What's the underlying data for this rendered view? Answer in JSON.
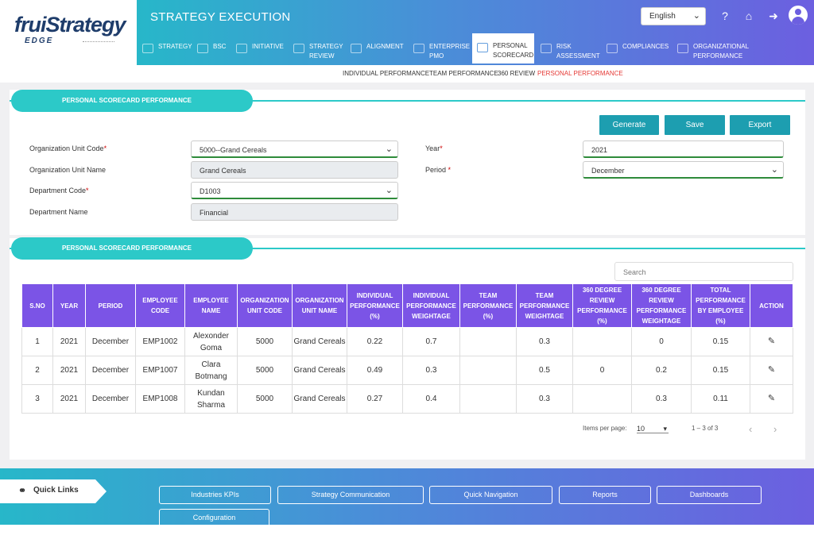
{
  "brand": {
    "name": "fruiStrategy",
    "sub": "EDGE"
  },
  "header": {
    "title": "STRATEGY EXECUTION",
    "language": "English"
  },
  "header_icons": [
    "help-icon",
    "home-icon",
    "logout-icon",
    "user-avatar-icon"
  ],
  "tabs": [
    {
      "label": "STRATEGY",
      "icon": "strategy-icon"
    },
    {
      "label": "BSC",
      "icon": "bsc-icon"
    },
    {
      "label": "INITIATIVE",
      "icon": "initiative-icon"
    },
    {
      "label": "STRATEGY\nREVIEW",
      "icon": "review-icon"
    },
    {
      "label": "ALIGNMENT",
      "icon": "alignment-icon"
    },
    {
      "label": "ENTERPRISE\nPMO",
      "icon": "pmo-icon"
    },
    {
      "label": "PERSONAL\nSCORECARD",
      "icon": "scorecard-icon",
      "active": true
    },
    {
      "label": "RISK\nASSESSMENT",
      "icon": "risk-icon"
    },
    {
      "label": "COMPLIANCES",
      "icon": "compliance-icon"
    },
    {
      "label": "ORGANIZATIONAL\nPERFORMANCE",
      "icon": "org-performance-icon"
    }
  ],
  "subnav": {
    "items": [
      "INDIVIDUAL PERFORMANCE",
      "TEAM PERFORMANCE",
      "360 REVIEW",
      "PERSONAL PERFORMANCE"
    ],
    "active_color": "#e53935"
  },
  "section1": {
    "title": "PERSONAL SCORECARD PERFORMANCE"
  },
  "actions": {
    "generate": "Generate",
    "save": "Save",
    "export": "Export"
  },
  "form": {
    "org_unit_code": {
      "label": "Organization Unit Code",
      "value": "5000--Grand Cereals"
    },
    "org_unit_name": {
      "label": "Organization Unit Name",
      "value": "Grand Cereals"
    },
    "dept_code": {
      "label": "Department Code",
      "value": "D1003"
    },
    "dept_name": {
      "label": "Department Name",
      "value": "Financial"
    },
    "year": {
      "label": "Year",
      "value": "2021"
    },
    "period": {
      "label": "Period",
      "value": "December"
    }
  },
  "section2": {
    "title": "PERSONAL SCORECARD PERFORMANCE"
  },
  "search": {
    "placeholder": "Search"
  },
  "table": {
    "headers": [
      "S.NO",
      "YEAR",
      "PERIOD",
      "EMPLOYEE CODE",
      "EMPLOYEE NAME",
      "ORGANIZATION UNIT CODE",
      "ORGANIZATION UNIT NAME",
      "INDIVIDUAL PERFORMANCE (%)",
      "INDIVIDUAL PERFORMANCE WEIGHTAGE",
      "TEAM PERFORMANCE (%)",
      "TEAM PERFORMANCE WEIGHTAGE",
      "360 DEGREE REVIEW PERFORMANCE (%)",
      "360 DEGREE REVIEW PERFORMANCE WEIGHTAGE",
      "TOTAL PERFORMANCE BY EMPLOYEE (%)",
      "ACTION"
    ],
    "rows": [
      [
        "1",
        "2021",
        "December",
        "EMP1002",
        "Alexonder Goma",
        "5000",
        "Grand Cereals",
        "0.22",
        "0.7",
        "",
        "0.3",
        "",
        "0",
        "0.15"
      ],
      [
        "2",
        "2021",
        "December",
        "EMP1007",
        "Clara Botmang",
        "5000",
        "Grand Cereals",
        "0.49",
        "0.3",
        "",
        "0.5",
        "0",
        "0.2",
        "0.15"
      ],
      [
        "3",
        "2021",
        "December",
        "EMP1008",
        "Kundan Sharma",
        "5000",
        "Grand Cereals",
        "0.27",
        "0.4",
        "",
        "0.3",
        "",
        "0.3",
        "0.11"
      ]
    ],
    "action_icon": "edit-pencil-icon"
  },
  "pager": {
    "label": "Items per page:",
    "size": "10",
    "range": "1 – 3 of 3"
  },
  "footer": {
    "quick_links": "Quick Links",
    "buttons": [
      "Industries KPIs",
      "Strategy Communication",
      "Quick Navigation",
      "Reports",
      "Dashboards",
      "Configuration"
    ]
  },
  "colors": {
    "teal": "#2cc9c8",
    "table_header": "#7b54e6",
    "button": "#1d9eb0"
  }
}
